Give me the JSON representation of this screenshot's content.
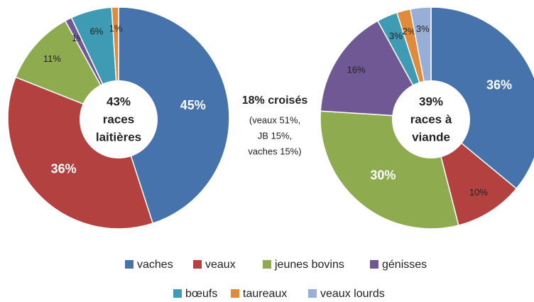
{
  "chart_data": [
    {
      "type": "pie",
      "center_label": [
        "43%",
        "races",
        "laitières"
      ],
      "categories": [
        "vaches",
        "veaux",
        "jeunes bovins",
        "génisses",
        "bœufs",
        "taureaux"
      ],
      "values": [
        45,
        36,
        11,
        1,
        6,
        1
      ],
      "value_labels": [
        "45%",
        "36%",
        "11%",
        "1%",
        "6%",
        "1%"
      ],
      "colors": [
        "#4673ac",
        "#b3413f",
        "#8eab50",
        "#6f5893",
        "#3e9bb3",
        "#e08a3b"
      ]
    },
    {
      "type": "pie",
      "center_label": [
        "39%",
        "races  à",
        "viande"
      ],
      "categories": [
        "vaches",
        "veaux",
        "jeunes bovins",
        "génisses",
        "bœufs",
        "taureaux",
        "veaux lourds"
      ],
      "values": [
        36,
        10,
        30,
        16,
        3,
        2,
        3
      ],
      "value_labels": [
        "36%",
        "10%",
        "30%",
        "16%",
        "3%",
        "2%",
        "3%"
      ],
      "colors": [
        "#4673ac",
        "#b3413f",
        "#8eab50",
        "#6f5893",
        "#3e9bb3",
        "#e08a3b",
        "#98aed6"
      ]
    }
  ],
  "annotation": {
    "title": "18% croisés",
    "lines": [
      "(veaux 51%,",
      "JB 15%,",
      "vaches 15%)"
    ]
  }
}
